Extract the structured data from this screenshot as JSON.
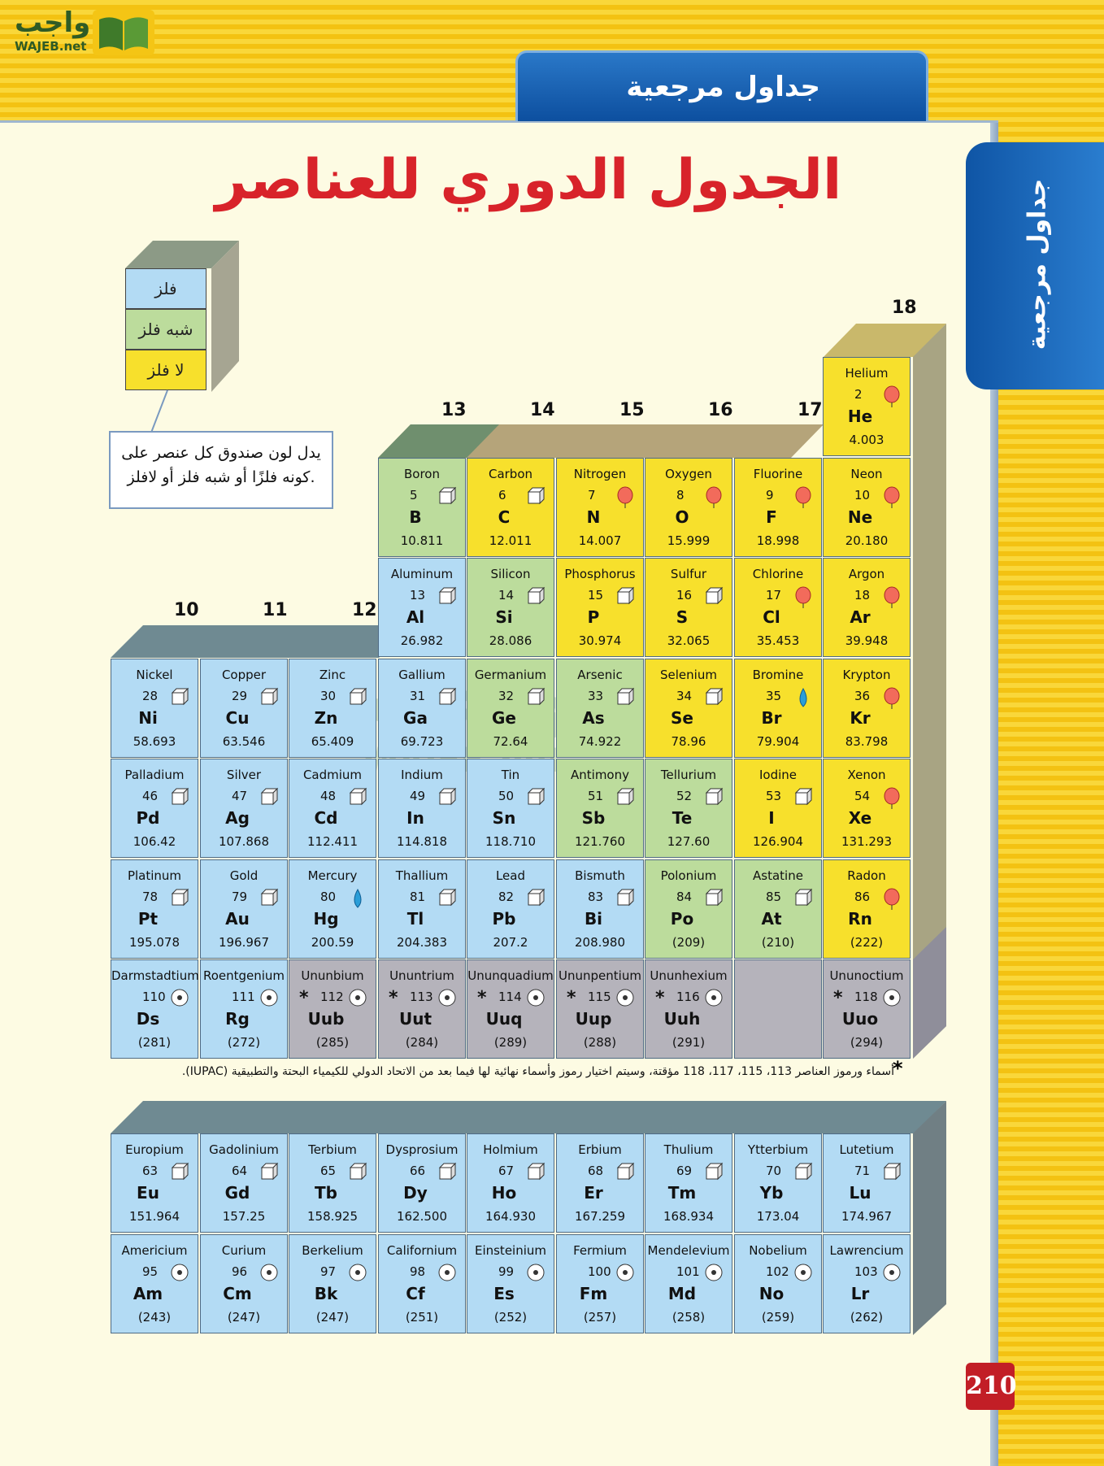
{
  "logo": {
    "arabic": "واجب",
    "latin": "WAJEB.net"
  },
  "header": {
    "tab_label": "جداول مرجعية",
    "side_label": "جداول مرجعية"
  },
  "title": "الجدول الدوري للعناصر",
  "legend": {
    "metal": "فلز",
    "metalloid": "شبه فلز",
    "nonmetal": "لا فلز",
    "callout": "يدل لون صندوق كل عنصر على كونه فلزًا أو شبه فلز أو لافلز."
  },
  "groups": {
    "g10": "10",
    "g11": "11",
    "g12": "12",
    "g13": "13",
    "g14": "14",
    "g15": "15",
    "g16": "16",
    "g17": "17",
    "g18": "18"
  },
  "elements": [
    {
      "name": "Helium",
      "num": "2",
      "sym": "He",
      "mass": "4.003",
      "cls": "nonmetal",
      "state": "gas",
      "col": 8,
      "row": 0
    },
    {
      "name": "Boron",
      "num": "5",
      "sym": "B",
      "mass": "10.811",
      "cls": "metalloid",
      "state": "solid",
      "col": 3,
      "row": 1
    },
    {
      "name": "Carbon",
      "num": "6",
      "sym": "C",
      "mass": "12.011",
      "cls": "nonmetal",
      "state": "solid",
      "col": 4,
      "row": 1
    },
    {
      "name": "Nitrogen",
      "num": "7",
      "sym": "N",
      "mass": "14.007",
      "cls": "nonmetal",
      "state": "gas",
      "col": 5,
      "row": 1
    },
    {
      "name": "Oxygen",
      "num": "8",
      "sym": "O",
      "mass": "15.999",
      "cls": "nonmetal",
      "state": "gas",
      "col": 6,
      "row": 1
    },
    {
      "name": "Fluorine",
      "num": "9",
      "sym": "F",
      "mass": "18.998",
      "cls": "nonmetal",
      "state": "gas",
      "col": 7,
      "row": 1
    },
    {
      "name": "Neon",
      "num": "10",
      "sym": "Ne",
      "mass": "20.180",
      "cls": "nonmetal",
      "state": "gas",
      "col": 8,
      "row": 1
    },
    {
      "name": "Aluminum",
      "num": "13",
      "sym": "Al",
      "mass": "26.982",
      "cls": "metal",
      "state": "solid",
      "col": 3,
      "row": 2
    },
    {
      "name": "Silicon",
      "num": "14",
      "sym": "Si",
      "mass": "28.086",
      "cls": "metalloid",
      "state": "solid",
      "col": 4,
      "row": 2
    },
    {
      "name": "Phosphorus",
      "num": "15",
      "sym": "P",
      "mass": "30.974",
      "cls": "nonmetal",
      "state": "solid",
      "col": 5,
      "row": 2
    },
    {
      "name": "Sulfur",
      "num": "16",
      "sym": "S",
      "mass": "32.065",
      "cls": "nonmetal",
      "state": "solid",
      "col": 6,
      "row": 2
    },
    {
      "name": "Chlorine",
      "num": "17",
      "sym": "Cl",
      "mass": "35.453",
      "cls": "nonmetal",
      "state": "gas",
      "col": 7,
      "row": 2
    },
    {
      "name": "Argon",
      "num": "18",
      "sym": "Ar",
      "mass": "39.948",
      "cls": "nonmetal",
      "state": "gas",
      "col": 8,
      "row": 2
    },
    {
      "name": "Nickel",
      "num": "28",
      "sym": "Ni",
      "mass": "58.693",
      "cls": "metal",
      "state": "solid",
      "col": 0,
      "row": 3
    },
    {
      "name": "Copper",
      "num": "29",
      "sym": "Cu",
      "mass": "63.546",
      "cls": "metal",
      "state": "solid",
      "col": 1,
      "row": 3
    },
    {
      "name": "Zinc",
      "num": "30",
      "sym": "Zn",
      "mass": "65.409",
      "cls": "metal",
      "state": "solid",
      "col": 2,
      "row": 3
    },
    {
      "name": "Gallium",
      "num": "31",
      "sym": "Ga",
      "mass": "69.723",
      "cls": "metal",
      "state": "solid",
      "col": 3,
      "row": 3
    },
    {
      "name": "Germanium",
      "num": "32",
      "sym": "Ge",
      "mass": "72.64",
      "cls": "metalloid",
      "state": "solid",
      "col": 4,
      "row": 3
    },
    {
      "name": "Arsenic",
      "num": "33",
      "sym": "As",
      "mass": "74.922",
      "cls": "metalloid",
      "state": "solid",
      "col": 5,
      "row": 3
    },
    {
      "name": "Selenium",
      "num": "34",
      "sym": "Se",
      "mass": "78.96",
      "cls": "nonmetal",
      "state": "solid",
      "col": 6,
      "row": 3
    },
    {
      "name": "Bromine",
      "num": "35",
      "sym": "Br",
      "mass": "79.904",
      "cls": "nonmetal",
      "state": "liquid",
      "col": 7,
      "row": 3
    },
    {
      "name": "Krypton",
      "num": "36",
      "sym": "Kr",
      "mass": "83.798",
      "cls": "nonmetal",
      "state": "gas",
      "col": 8,
      "row": 3
    },
    {
      "name": "Palladium",
      "num": "46",
      "sym": "Pd",
      "mass": "106.42",
      "cls": "metal",
      "state": "solid",
      "col": 0,
      "row": 4
    },
    {
      "name": "Silver",
      "num": "47",
      "sym": "Ag",
      "mass": "107.868",
      "cls": "metal",
      "state": "solid",
      "col": 1,
      "row": 4
    },
    {
      "name": "Cadmium",
      "num": "48",
      "sym": "Cd",
      "mass": "112.411",
      "cls": "metal",
      "state": "solid",
      "col": 2,
      "row": 4
    },
    {
      "name": "Indium",
      "num": "49",
      "sym": "In",
      "mass": "114.818",
      "cls": "metal",
      "state": "solid",
      "col": 3,
      "row": 4
    },
    {
      "name": "Tin",
      "num": "50",
      "sym": "Sn",
      "mass": "118.710",
      "cls": "metal",
      "state": "solid",
      "col": 4,
      "row": 4
    },
    {
      "name": "Antimony",
      "num": "51",
      "sym": "Sb",
      "mass": "121.760",
      "cls": "metalloid",
      "state": "solid",
      "col": 5,
      "row": 4
    },
    {
      "name": "Tellurium",
      "num": "52",
      "sym": "Te",
      "mass": "127.60",
      "cls": "metalloid",
      "state": "solid",
      "col": 6,
      "row": 4
    },
    {
      "name": "Iodine",
      "num": "53",
      "sym": "I",
      "mass": "126.904",
      "cls": "nonmetal",
      "state": "solid",
      "col": 7,
      "row": 4
    },
    {
      "name": "Xenon",
      "num": "54",
      "sym": "Xe",
      "mass": "131.293",
      "cls": "nonmetal",
      "state": "gas",
      "col": 8,
      "row": 4
    },
    {
      "name": "Platinum",
      "num": "78",
      "sym": "Pt",
      "mass": "195.078",
      "cls": "metal",
      "state": "solid",
      "col": 0,
      "row": 5
    },
    {
      "name": "Gold",
      "num": "79",
      "sym": "Au",
      "mass": "196.967",
      "cls": "metal",
      "state": "solid",
      "col": 1,
      "row": 5
    },
    {
      "name": "Mercury",
      "num": "80",
      "sym": "Hg",
      "mass": "200.59",
      "cls": "metal",
      "state": "liquid",
      "col": 2,
      "row": 5
    },
    {
      "name": "Thallium",
      "num": "81",
      "sym": "Tl",
      "mass": "204.383",
      "cls": "metal",
      "state": "solid",
      "col": 3,
      "row": 5
    },
    {
      "name": "Lead",
      "num": "82",
      "sym": "Pb",
      "mass": "207.2",
      "cls": "metal",
      "state": "solid",
      "col": 4,
      "row": 5
    },
    {
      "name": "Bismuth",
      "num": "83",
      "sym": "Bi",
      "mass": "208.980",
      "cls": "metal",
      "state": "solid",
      "col": 5,
      "row": 5
    },
    {
      "name": "Polonium",
      "num": "84",
      "sym": "Po",
      "mass": "(209)",
      "cls": "metalloid",
      "state": "solid",
      "col": 6,
      "row": 5
    },
    {
      "name": "Astatine",
      "num": "85",
      "sym": "At",
      "mass": "(210)",
      "cls": "metalloid",
      "state": "solid",
      "col": 7,
      "row": 5
    },
    {
      "name": "Radon",
      "num": "86",
      "sym": "Rn",
      "mass": "(222)",
      "cls": "nonmetal",
      "state": "gas",
      "col": 8,
      "row": 5
    },
    {
      "name": "Darmstadtium",
      "num": "110",
      "sym": "Ds",
      "mass": "(281)",
      "cls": "metal",
      "state": "synthetic",
      "col": 0,
      "row": 6
    },
    {
      "name": "Roentgenium",
      "num": "111",
      "sym": "Rg",
      "mass": "(272)",
      "cls": "metal",
      "state": "synthetic",
      "col": 1,
      "row": 6
    },
    {
      "name": "Ununbium",
      "num": "112",
      "sym": "Uub",
      "mass": "(285)",
      "cls": "unknown",
      "state": "synthetic",
      "star": "*",
      "col": 2,
      "row": 6
    },
    {
      "name": "Ununtrium",
      "num": "113",
      "sym": "Uut",
      "mass": "(284)",
      "cls": "unknown",
      "state": "synthetic",
      "star": "*",
      "col": 3,
      "row": 6
    },
    {
      "name": "Ununquadium",
      "num": "114",
      "sym": "Uuq",
      "mass": "(289)",
      "cls": "unknown",
      "state": "synthetic",
      "star": "*",
      "col": 4,
      "row": 6
    },
    {
      "name": "Ununpentium",
      "num": "115",
      "sym": "Uup",
      "mass": "(288)",
      "cls": "unknown",
      "state": "synthetic",
      "star": "*",
      "col": 5,
      "row": 6
    },
    {
      "name": "Ununhexium",
      "num": "116",
      "sym": "Uuh",
      "mass": "(291)",
      "cls": "unknown",
      "state": "synthetic",
      "star": "*",
      "col": 6,
      "row": 6
    },
    {
      "name": "Ununoctium",
      "num": "118",
      "sym": "Uuo",
      "mass": "(294)",
      "cls": "unknown",
      "state": "synthetic",
      "star": "*",
      "col": 8,
      "row": 6
    }
  ],
  "fblock": [
    {
      "name": "Europium",
      "num": "63",
      "sym": "Eu",
      "mass": "151.964",
      "state": "solid",
      "col": 0,
      "row": 0
    },
    {
      "name": "Gadolinium",
      "num": "64",
      "sym": "Gd",
      "mass": "157.25",
      "state": "solid",
      "col": 1,
      "row": 0
    },
    {
      "name": "Terbium",
      "num": "65",
      "sym": "Tb",
      "mass": "158.925",
      "state": "solid",
      "col": 2,
      "row": 0
    },
    {
      "name": "Dysprosium",
      "num": "66",
      "sym": "Dy",
      "mass": "162.500",
      "state": "solid",
      "col": 3,
      "row": 0
    },
    {
      "name": "Holmium",
      "num": "67",
      "sym": "Ho",
      "mass": "164.930",
      "state": "solid",
      "col": 4,
      "row": 0
    },
    {
      "name": "Erbium",
      "num": "68",
      "sym": "Er",
      "mass": "167.259",
      "state": "solid",
      "col": 5,
      "row": 0
    },
    {
      "name": "Thulium",
      "num": "69",
      "sym": "Tm",
      "mass": "168.934",
      "state": "solid",
      "col": 6,
      "row": 0
    },
    {
      "name": "Ytterbium",
      "num": "70",
      "sym": "Yb",
      "mass": "173.04",
      "state": "solid",
      "col": 7,
      "row": 0
    },
    {
      "name": "Lutetium",
      "num": "71",
      "sym": "Lu",
      "mass": "174.967",
      "state": "solid",
      "col": 8,
      "row": 0
    },
    {
      "name": "Americium",
      "num": "95",
      "sym": "Am",
      "mass": "(243)",
      "state": "synthetic",
      "col": 0,
      "row": 1
    },
    {
      "name": "Curium",
      "num": "96",
      "sym": "Cm",
      "mass": "(247)",
      "state": "synthetic",
      "col": 1,
      "row": 1
    },
    {
      "name": "Berkelium",
      "num": "97",
      "sym": "Bk",
      "mass": "(247)",
      "state": "synthetic",
      "col": 2,
      "row": 1
    },
    {
      "name": "Californium",
      "num": "98",
      "sym": "Cf",
      "mass": "(251)",
      "state": "synthetic",
      "col": 3,
      "row": 1
    },
    {
      "name": "Einsteinium",
      "num": "99",
      "sym": "Es",
      "mass": "(252)",
      "state": "synthetic",
      "col": 4,
      "row": 1
    },
    {
      "name": "Fermium",
      "num": "100",
      "sym": "Fm",
      "mass": "(257)",
      "state": "synthetic",
      "col": 5,
      "row": 1
    },
    {
      "name": "Mendelevium",
      "num": "101",
      "sym": "Md",
      "mass": "(258)",
      "state": "synthetic",
      "col": 6,
      "row": 1
    },
    {
      "name": "Nobelium",
      "num": "102",
      "sym": "No",
      "mass": "(259)",
      "state": "synthetic",
      "col": 7,
      "row": 1
    },
    {
      "name": "Lawrencium",
      "num": "103",
      "sym": "Lr",
      "mass": "(262)",
      "state": "synthetic",
      "col": 8,
      "row": 1
    }
  ],
  "footnote": "أسماء ورموز العناصر 113، 115، 117، 118 مؤقتة، وسيتم اختيار رموز وأسماء نهائية لها فيما بعد من الاتحاد الدولي للكيمياء البحتة والتطبيقية (IUPAC).",
  "footnote_star": "*",
  "page_number": "210",
  "colors": {
    "metal": "#b3dbf4",
    "metalloid": "#bcdc9c",
    "nonmetal": "#f7e02c",
    "unknown": "#b5b3bb",
    "title": "#d8232a",
    "header": "#0d4f9f"
  }
}
